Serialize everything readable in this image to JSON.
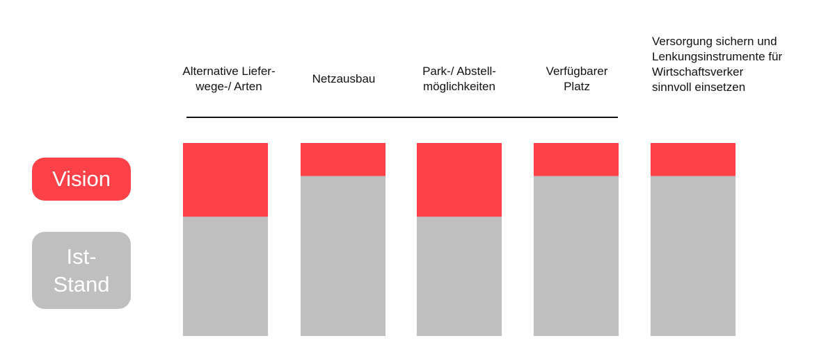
{
  "colors": {
    "vision": "#fc4148",
    "ist_stand": "#bfbfbf"
  },
  "legend": {
    "vision_label": "Vision",
    "ist_stand_label": "Ist-\nStand"
  },
  "chart_data": {
    "type": "bar",
    "stacked": true,
    "categories": [
      "Alternative Liefer-\nwege-/ Arten",
      "Netzausbau",
      "Park-/ Abstell-\nmöglichkeiten",
      "Verfügbarer\nPlatz",
      "Versorgung sichern und\nLenkungsinstrumente für\nWirtschaftsverker\nsinnvoll einsetzen"
    ],
    "series": [
      {
        "name": "Ist-Stand",
        "values": [
          61.8,
          82.9,
          61.8,
          82.9,
          82.9
        ]
      },
      {
        "name": "Vision",
        "values": [
          38.2,
          17.1,
          38.2,
          17.1,
          17.1
        ]
      }
    ],
    "ylim": [
      0,
      100
    ],
    "grid": false,
    "legend_position": "left"
  }
}
